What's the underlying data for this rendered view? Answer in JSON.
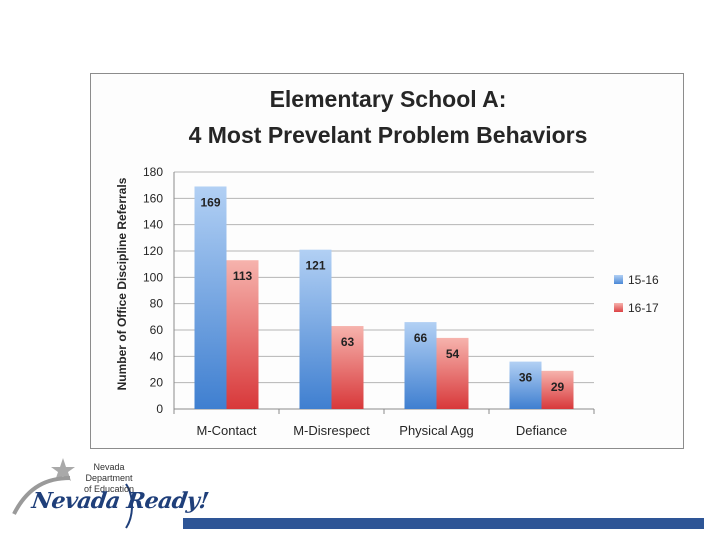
{
  "chart_data": {
    "type": "bar",
    "title_lines": [
      "Elementary School A:",
      "4 Most Prevelant Problem Behaviors"
    ],
    "ylabel": "Number of Office Discipline Referrals",
    "xlabel": "",
    "ylim": [
      0,
      180
    ],
    "yticks": [
      0,
      20,
      40,
      60,
      80,
      100,
      120,
      140,
      160,
      180
    ],
    "categories": [
      "M-Contact",
      "M-Disrespect",
      "Physical Agg",
      "Defiance"
    ],
    "series": [
      {
        "name": "15-16",
        "values": [
          169,
          121,
          66,
          36
        ],
        "color": "#5b96dc"
      },
      {
        "name": "16-17",
        "values": [
          113,
          63,
          54,
          29
        ],
        "color": "#e8534e"
      }
    ],
    "grid": true,
    "legend": "right"
  },
  "logo": {
    "dept_line1": "Nevada Department",
    "dept_line2": "of Education",
    "tagline": "Nevada Ready!"
  },
  "colors": {
    "footer_bar": "#2e5596"
  }
}
